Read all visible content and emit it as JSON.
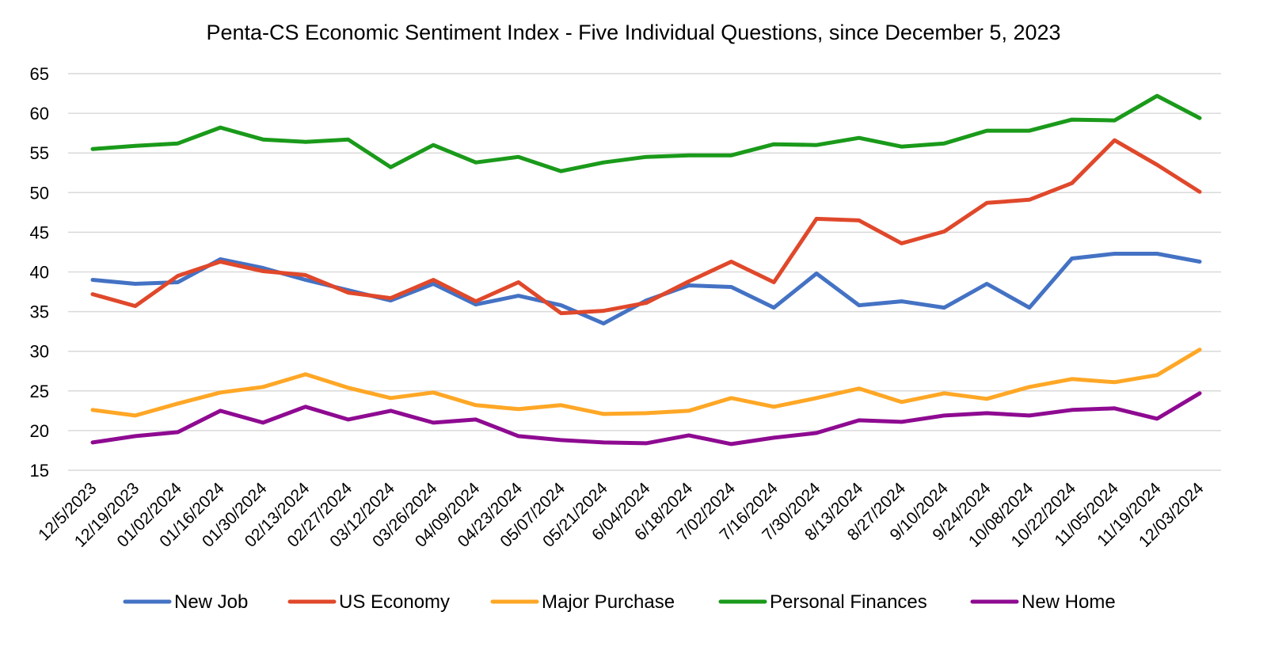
{
  "chart_data": {
    "type": "line",
    "title": "Penta-CS Economic Sentiment Index - Five Individual Questions, since December 5, 2023",
    "xlabel": "",
    "ylabel": "",
    "ylim": [
      15,
      65
    ],
    "yticks": [
      15,
      20,
      25,
      30,
      35,
      40,
      45,
      50,
      55,
      60,
      65
    ],
    "grid": true,
    "legend_position": "bottom",
    "categories": [
      "12/5/2023",
      "12/19/2023",
      "01/02/2024",
      "01/16/2024",
      "01/30/2024",
      "02/13/2024",
      "02/27/2024",
      "03/12/2024",
      "03/26/2024",
      "04/09/2024",
      "04/23/2024",
      "05/07/2024",
      "05/21/2024",
      "6/04/2024",
      "6/18/2024",
      "7/02/2024",
      "7/16/2024",
      "7/30/2024",
      "8/13/2024",
      "8/27/2024",
      "9/10/2024",
      "9/24/2024",
      "10/08/2024",
      "10/22/2024",
      "11/05/2024",
      "11/19/2024",
      "12/03/2024"
    ],
    "series": [
      {
        "name": "New Job",
        "color": "#4472C4",
        "values": [
          39.0,
          38.5,
          38.7,
          41.6,
          40.5,
          39.0,
          37.7,
          36.4,
          38.5,
          35.9,
          37.0,
          35.8,
          33.5,
          36.4,
          38.3,
          38.1,
          35.5,
          39.8,
          35.8,
          36.3,
          35.5,
          38.5,
          35.5,
          41.7,
          42.3,
          42.3,
          41.3
        ]
      },
      {
        "name": "US Economy",
        "color": "#E0482B",
        "values": [
          37.2,
          35.7,
          39.5,
          41.3,
          40.1,
          39.6,
          37.4,
          36.7,
          39.0,
          36.3,
          38.7,
          34.8,
          35.1,
          36.1,
          38.8,
          41.3,
          38.7,
          46.7,
          46.5,
          43.6,
          45.1,
          48.7,
          49.1,
          51.2,
          56.6,
          53.5,
          50.1
        ]
      },
      {
        "name": "Major Purchase",
        "color": "#FFA726",
        "values": [
          22.6,
          21.9,
          23.4,
          24.8,
          25.5,
          27.1,
          25.4,
          24.1,
          24.8,
          23.2,
          22.7,
          23.2,
          22.1,
          22.2,
          22.5,
          24.1,
          23.0,
          24.1,
          25.3,
          23.6,
          24.7,
          24.0,
          25.5,
          26.5,
          26.1,
          27.0,
          30.2
        ]
      },
      {
        "name": "Personal Finances",
        "color": "#1A9A1A",
        "values": [
          55.5,
          55.9,
          56.2,
          58.2,
          56.7,
          56.4,
          56.7,
          53.2,
          56.0,
          53.8,
          54.5,
          52.7,
          53.8,
          54.5,
          54.7,
          54.7,
          56.1,
          56.0,
          56.9,
          55.8,
          56.2,
          57.8,
          57.8,
          59.2,
          59.1,
          62.2,
          59.4
        ]
      },
      {
        "name": "New Home",
        "color": "#8E0A91",
        "values": [
          18.5,
          19.3,
          19.8,
          22.5,
          21.0,
          23.0,
          21.4,
          22.5,
          21.0,
          21.4,
          19.3,
          18.8,
          18.5,
          18.4,
          19.4,
          18.3,
          19.1,
          19.7,
          21.3,
          21.1,
          21.9,
          22.2,
          21.9,
          22.6,
          22.8,
          21.5,
          24.7
        ]
      }
    ]
  }
}
